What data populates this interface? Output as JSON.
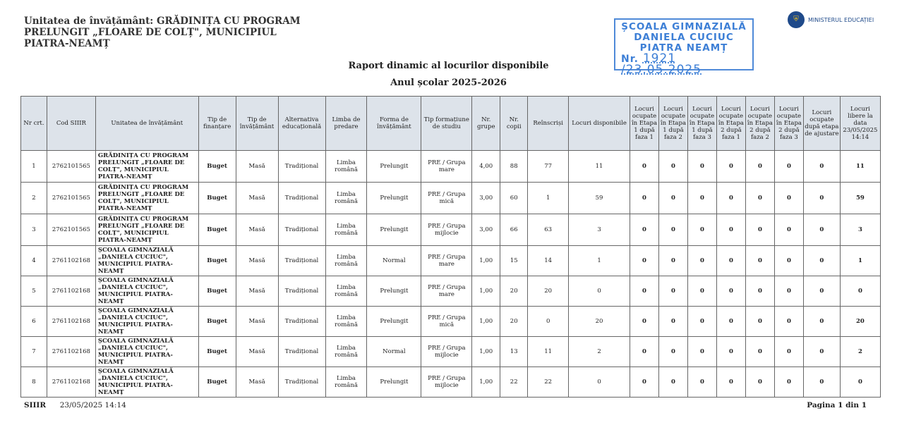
{
  "header": {
    "unit_lines": [
      "Unitatea de învățământ: GRĂDINIȚA CU PROGRAM",
      "PRELUNGIT „FLOARE DE COLȚ\", MUNICIPIUL",
      "PIATRA-NEAMȚ"
    ],
    "title": "Raport dinamic al locurilor disponibile",
    "subtitle": "Anul școlar 2025-2026"
  },
  "stamp": {
    "lines": [
      "ȘCOALA GIMNAZIALĂ",
      "DANIELA CUCIUC",
      "PIATRA NEAMȚ"
    ],
    "nr_label": "Nr.",
    "nr_value": "1921",
    "date": "/23.05.2025"
  },
  "logo": {
    "text": "MINISTERUL EDUCAȚIEI"
  },
  "table": {
    "columns": [
      "Nr crt.",
      "Cod SIIIR",
      "Unitatea de învățământ",
      "Tip de finanțare",
      "Tip de învățământ",
      "Alternativa educațională",
      "Limba de predare",
      "Forma de învățământ",
      "Tip formațiune de studiu",
      "Nr. grupe",
      "Nr. copii",
      "Reînscriși",
      "Locuri disponibile",
      "Locuri ocupate în Etapa 1 după faza 1",
      "Locuri ocupate în Etapa 1 după faza 2",
      "Locuri ocupate în Etapa 1 după faza 3",
      "Locuri ocupate în Etapa 2 după faza 1",
      "Locuri ocupate în Etapa 2 după faza 2",
      "Locuri ocupate în Etapa 2 după faza 3",
      "Locuri ocupate după etapa de ajustare",
      "Locuri libere la data 23/05/2025 14:14"
    ],
    "rows": [
      [
        "1",
        "2762101565",
        "GRĂDINIȚA CU PROGRAM PRELUNGIT „FLOARE DE COLȚ\", MUNICIPIUL PIATRA-NEAMȚ",
        "Buget",
        "Masă",
        "Tradițional",
        "Limba română",
        "Prelungit",
        "PRE / Grupa mare",
        "4,00",
        "88",
        "77",
        "11",
        "0",
        "0",
        "0",
        "0",
        "0",
        "0",
        "0",
        "11"
      ],
      [
        "2",
        "2762101565",
        "GRĂDINIȚA CU PROGRAM PRELUNGIT „FLOARE DE COLȚ\", MUNICIPIUL PIATRA-NEAMȚ",
        "Buget",
        "Masă",
        "Tradițional",
        "Limba română",
        "Prelungit",
        "PRE / Grupa mică",
        "3,00",
        "60",
        "1",
        "59",
        "0",
        "0",
        "0",
        "0",
        "0",
        "0",
        "0",
        "59"
      ],
      [
        "3",
        "2762101565",
        "GRĂDINIȚA CU PROGRAM PRELUNGIT „FLOARE DE COLȚ\", MUNICIPIUL PIATRA-NEAMȚ",
        "Buget",
        "Masă",
        "Tradițional",
        "Limba română",
        "Prelungit",
        "PRE / Grupa mijlocie",
        "3,00",
        "66",
        "63",
        "3",
        "0",
        "0",
        "0",
        "0",
        "0",
        "0",
        "0",
        "3"
      ],
      [
        "4",
        "2761102168",
        "ȘCOALA GIMNAZIALĂ „DANIELA CUCIUC\", MUNICIPIUL PIATRA-NEAMȚ",
        "Buget",
        "Masă",
        "Tradițional",
        "Limba română",
        "Normal",
        "PRE / Grupa mare",
        "1,00",
        "15",
        "14",
        "1",
        "0",
        "0",
        "0",
        "0",
        "0",
        "0",
        "0",
        "1"
      ],
      [
        "5",
        "2761102168",
        "ȘCOALA GIMNAZIALĂ „DANIELA CUCIUC\", MUNICIPIUL PIATRA-NEAMȚ",
        "Buget",
        "Masă",
        "Tradițional",
        "Limba română",
        "Prelungit",
        "PRE / Grupa mare",
        "1,00",
        "20",
        "20",
        "0",
        "0",
        "0",
        "0",
        "0",
        "0",
        "0",
        "0",
        "0"
      ],
      [
        "6",
        "2761102168",
        "ȘCOALA GIMNAZIALĂ „DANIELA CUCIUC\", MUNICIPIUL PIATRA-NEAMȚ",
        "Buget",
        "Masă",
        "Tradițional",
        "Limba română",
        "Prelungit",
        "PRE / Grupa mică",
        "1,00",
        "20",
        "0",
        "20",
        "0",
        "0",
        "0",
        "0",
        "0",
        "0",
        "0",
        "20"
      ],
      [
        "7",
        "2761102168",
        "ȘCOALA GIMNAZIALĂ „DANIELA CUCIUC\", MUNICIPIUL PIATRA-NEAMȚ",
        "Buget",
        "Masă",
        "Tradițional",
        "Limba română",
        "Normal",
        "PRE / Grupa mijlocie",
        "1,00",
        "13",
        "11",
        "2",
        "0",
        "0",
        "0",
        "0",
        "0",
        "0",
        "0",
        "2"
      ],
      [
        "8",
        "2761102168",
        "ȘCOALA GIMNAZIALĂ „DANIELA CUCIUC\", MUNICIPIUL PIATRA-NEAMȚ",
        "Buget",
        "Masă",
        "Tradițional",
        "Limba română",
        "Prelungit",
        "PRE / Grupa mijlocie",
        "1,00",
        "22",
        "22",
        "0",
        "0",
        "0",
        "0",
        "0",
        "0",
        "0",
        "0",
        "0"
      ]
    ]
  },
  "footer": {
    "source": "SIIIR",
    "timestamp": "23/05/2025 14:14",
    "page": "Pagina 1 din  1"
  }
}
